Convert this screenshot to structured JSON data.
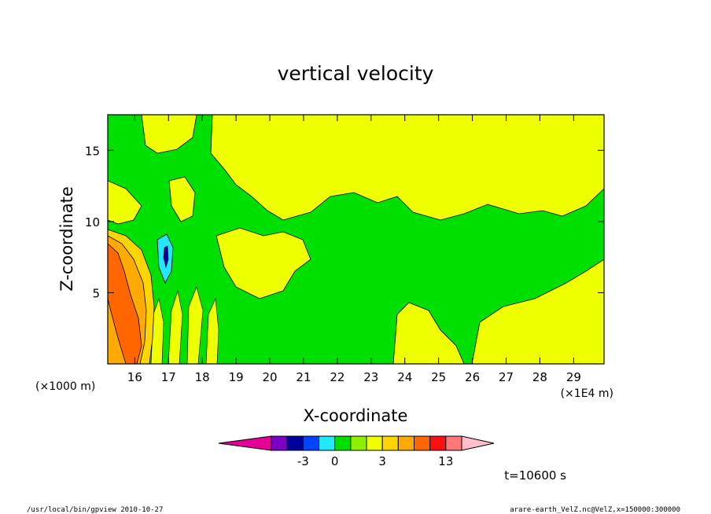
{
  "chart_data": {
    "type": "heatmap",
    "title": "vertical velocity",
    "xlabel": "X-coordinate",
    "ylabel": "Z-coordinate",
    "x_unit_left": "(×1000 m)",
    "x_unit_right": "(×1E4 m)",
    "xlim": [
      15.2,
      29.9
    ],
    "ylim": [
      0.0,
      17.5
    ],
    "x_ticks": [
      "16",
      "17",
      "18",
      "19",
      "20",
      "21",
      "22",
      "23",
      "24",
      "25",
      "26",
      "27",
      "28",
      "29"
    ],
    "y_ticks": [
      "5",
      "10",
      "15"
    ],
    "x_tick_values": [
      16,
      17,
      18,
      19,
      20,
      21,
      22,
      23,
      24,
      25,
      26,
      27,
      28,
      29
    ],
    "y_tick_values": [
      5,
      10,
      15
    ],
    "colorbar": {
      "colors": [
        "#e60099",
        "#7a00c8",
        "#0000a0",
        "#0044ff",
        "#22e8ff",
        "#00e000",
        "#8cf000",
        "#f0ff00",
        "#ffd500",
        "#ffaa00",
        "#ff6600",
        "#ff1010",
        "#ff7878",
        "#ffc0cb"
      ],
      "labels": [
        {
          "value": "-3",
          "boundary": 3
        },
        {
          "value": "0",
          "boundary": 5
        },
        {
          "value": "3",
          "boundary": 8
        },
        {
          "value": "13",
          "boundary": 12
        }
      ]
    },
    "time_label": "t=10600 s",
    "palette": {
      "neg_strong": "#0000a0",
      "neg": "#22e8ff",
      "zero": "#00e000",
      "pos_weak": "#f0ff00",
      "pos": "#ffaa00",
      "pos_strong": "#ff6600"
    }
  },
  "footer": {
    "left": "/usr/local/bin/gpview   2010-10-27",
    "right": "arare-earth_VelZ.nc@VelZ,x=150000:300000"
  }
}
